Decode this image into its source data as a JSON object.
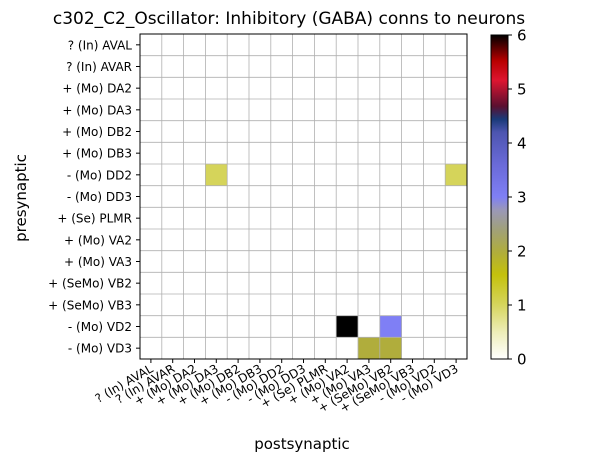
{
  "chart_data": {
    "type": "heatmap",
    "title": "c302_C2_Oscillator: Inhibitory (GABA) conns to neurons",
    "xlabel": "postsynaptic",
    "ylabel": "presynaptic",
    "labels": [
      "? (In) AVAL",
      "? (In) AVAR",
      "+ (Mo) DA2",
      "+ (Mo) DA3",
      "+ (Mo) DB2",
      "+ (Mo) DB3",
      "- (Mo) DD2",
      "- (Mo) DD3",
      "+ (Se) PLMR",
      "+ (Mo) VA2",
      "+ (Mo) VA3",
      "+ (SeMo) VB2",
      "+ (SeMo) VB3",
      "- (Mo) VD2",
      "- (Mo) VD3"
    ],
    "cells": [
      {
        "pre": "- (Mo) DD2",
        "post": "+ (Mo) DA3",
        "value": 1
      },
      {
        "pre": "- (Mo) DD2",
        "post": "- (Mo) VD3",
        "value": 1
      },
      {
        "pre": "- (Mo) VD2",
        "post": "+ (Mo) VA2",
        "value": 6
      },
      {
        "pre": "- (Mo) VD2",
        "post": "+ (SeMo) VB2",
        "value": 3
      },
      {
        "pre": "- (Mo) VD3",
        "post": "+ (Mo) VA3",
        "value": 2
      },
      {
        "pre": "- (Mo) VD3",
        "post": "+ (SeMo) VB2",
        "value": 2
      }
    ],
    "colorbar": {
      "range": [
        0,
        6
      ],
      "ticks": [
        "0",
        "1",
        "2",
        "3",
        "4",
        "5",
        "6"
      ],
      "colormap": "gist_stern_r-like",
      "colors": {
        "0": "#ffffff",
        "1": "#d5d45a",
        "2": "#b0ad3c",
        "3": "#7f7ff5",
        "6": "#000000"
      }
    },
    "grid": true
  }
}
